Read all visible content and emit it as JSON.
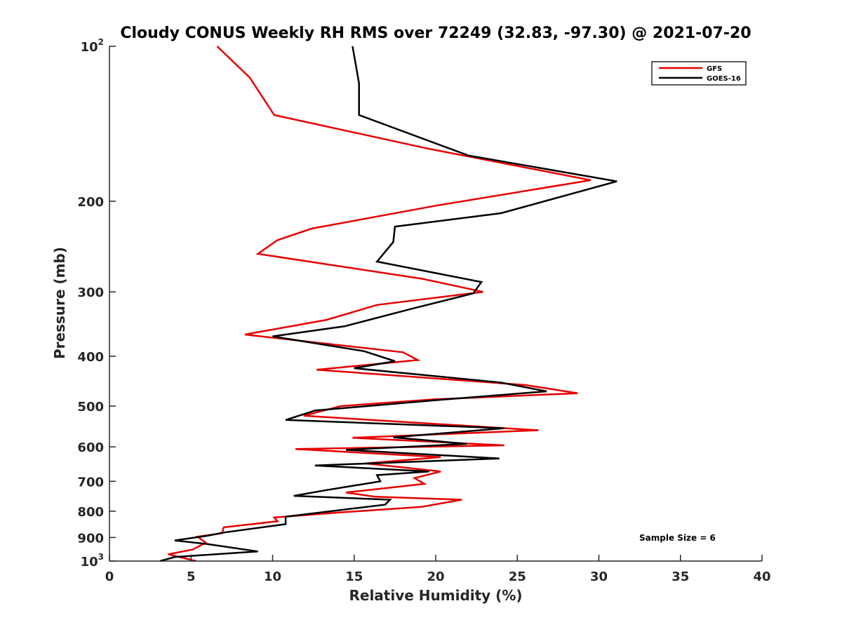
{
  "chart_data": {
    "type": "line",
    "title": "Cloudy CONUS Weekly RH RMS over 72249 (32.83, -97.30) @ 2021-07-20",
    "xlabel": "Relative Humidity (%)",
    "ylabel": "Pressure (mb)",
    "xlim": [
      0,
      40
    ],
    "ylim": [
      100,
      1000
    ],
    "y_scale": "log",
    "y_reversed": true,
    "grid": false,
    "legend_position": "top-right",
    "x_ticks": [
      "0",
      "5",
      "10",
      "15",
      "20",
      "25",
      "30",
      "35",
      "40"
    ],
    "y_ticks": [
      {
        "value": 100,
        "base": "10",
        "sup": "2"
      },
      {
        "value": 200,
        "label": "200"
      },
      {
        "value": 300,
        "label": "300"
      },
      {
        "value": 400,
        "label": "400"
      },
      {
        "value": 500,
        "label": "500"
      },
      {
        "value": 600,
        "label": "600"
      },
      {
        "value": 700,
        "label": "700"
      },
      {
        "value": 800,
        "label": "800"
      },
      {
        "value": 900,
        "label": "900"
      },
      {
        "value": 1000,
        "base": "10",
        "sup": "3"
      }
    ],
    "annotation": "Sample Size = 6",
    "series": [
      {
        "name": "GFS",
        "color": "#e60000",
        "points": [
          [
            6.6,
            100
          ],
          [
            8.6,
            115
          ],
          [
            10.1,
            136
          ],
          [
            19.5,
            158
          ],
          [
            29.5,
            182
          ],
          [
            20,
            204
          ],
          [
            12.4,
            226
          ],
          [
            10.3,
            238
          ],
          [
            9.1,
            253
          ],
          [
            19.2,
            283
          ],
          [
            22.9,
            300
          ],
          [
            16.4,
            318
          ],
          [
            13.3,
            340
          ],
          [
            8.3,
            363
          ],
          [
            18.0,
            393
          ],
          [
            18.9,
            407
          ],
          [
            12.7,
            425
          ],
          [
            25.5,
            455
          ],
          [
            28.7,
            472
          ],
          [
            20.0,
            485
          ],
          [
            14.2,
            500
          ],
          [
            11.9,
            522
          ],
          [
            26.3,
            557
          ],
          [
            14.9,
            576
          ],
          [
            24.2,
            596
          ],
          [
            11.4,
            606
          ],
          [
            20.3,
            628
          ],
          [
            15.7,
            646
          ],
          [
            20.3,
            670
          ],
          [
            18.7,
            690
          ],
          [
            19.3,
            708
          ],
          [
            14.5,
            736
          ],
          [
            16.3,
            750
          ],
          [
            21.6,
            760
          ],
          [
            19.1,
            785
          ],
          [
            14.0,
            805
          ],
          [
            10.1,
            823
          ],
          [
            10.3,
            837
          ],
          [
            7.0,
            860
          ],
          [
            6.9,
            883
          ],
          [
            5.4,
            897
          ],
          [
            5.9,
            921
          ],
          [
            5.1,
            950
          ],
          [
            3.6,
            970
          ],
          [
            5.3,
            1000
          ]
        ]
      },
      {
        "name": "GOES-16",
        "color": "#000000",
        "points": [
          [
            14.9,
            100
          ],
          [
            15.3,
            118
          ],
          [
            15.3,
            136
          ],
          [
            22.0,
            163
          ],
          [
            31.1,
            183
          ],
          [
            24.0,
            211
          ],
          [
            17.5,
            224
          ],
          [
            17.4,
            240
          ],
          [
            16.4,
            262
          ],
          [
            22.8,
            287
          ],
          [
            22.3,
            302
          ],
          [
            18.6,
            323
          ],
          [
            14.4,
            350
          ],
          [
            10.0,
            366
          ],
          [
            15.6,
            391
          ],
          [
            17.5,
            409
          ],
          [
            15.0,
            422
          ],
          [
            24.0,
            450
          ],
          [
            26.8,
            468
          ],
          [
            20.0,
            487
          ],
          [
            12.6,
            510
          ],
          [
            10.8,
            532
          ],
          [
            24.2,
            552
          ],
          [
            17.4,
            575
          ],
          [
            21.9,
            592
          ],
          [
            14.5,
            608
          ],
          [
            23.9,
            632
          ],
          [
            12.6,
            652
          ],
          [
            19.6,
            670
          ],
          [
            16.4,
            681
          ],
          [
            16.6,
            700
          ],
          [
            13.3,
            728
          ],
          [
            11.3,
            747
          ],
          [
            17.2,
            760
          ],
          [
            16.9,
            777
          ],
          [
            10.8,
            820
          ],
          [
            10.8,
            848
          ],
          [
            7.0,
            880
          ],
          [
            6.0,
            893
          ],
          [
            4.0,
            912
          ],
          [
            6.0,
            927
          ],
          [
            9.1,
            958
          ],
          [
            4.0,
            982
          ],
          [
            3.1,
            1000
          ]
        ]
      }
    ]
  }
}
